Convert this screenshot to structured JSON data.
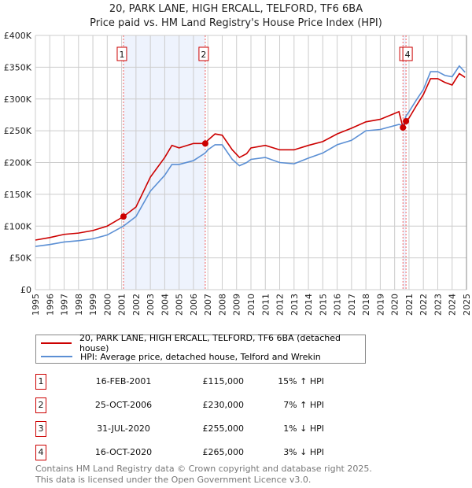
{
  "title_line1": "20, PARK LANE, HIGH ERCALL, TELFORD, TF6 6BA",
  "title_line2": "Price paid vs. HM Land Registry's House Price Index (HPI)",
  "chart_data": {
    "type": "line",
    "xlim": [
      1995,
      2025
    ],
    "ylim": [
      0,
      400000
    ],
    "y_ticks": [
      0,
      50000,
      100000,
      150000,
      200000,
      250000,
      300000,
      350000,
      400000
    ],
    "y_tick_labels": [
      "£0",
      "£50K",
      "£100K",
      "£150K",
      "£200K",
      "£250K",
      "£300K",
      "£350K",
      "£400K"
    ],
    "x_ticks": [
      1995,
      1996,
      1997,
      1998,
      1999,
      2000,
      2001,
      2002,
      2003,
      2004,
      2005,
      2006,
      2007,
      2008,
      2009,
      2010,
      2011,
      2012,
      2013,
      2014,
      2015,
      2016,
      2017,
      2018,
      2019,
      2020,
      2021,
      2022,
      2023,
      2024,
      2025
    ],
    "x_tick_labels": [
      "1995",
      "1996",
      "1997",
      "1998",
      "1999",
      "2000",
      "2001",
      "2002",
      "2003",
      "2004",
      "2005",
      "2006",
      "2007",
      "2008",
      "2009",
      "2010",
      "2011",
      "2012",
      "2013",
      "2014",
      "2015",
      "2016",
      "2017",
      "2018",
      "2019",
      "2020",
      "2021",
      "2022",
      "2023",
      "2024",
      "2025"
    ],
    "grid": true,
    "colors": {
      "property": "#cc0000",
      "hpi": "#5b8fd4",
      "shade": "#eef3fd"
    },
    "series": [
      {
        "name": "20, PARK LANE, HIGH ERCALL, TELFORD, TF6 6BA (detached house)",
        "x": [
          1995,
          1996,
          1997,
          1998,
          1999,
          2000,
          2001.13,
          2002,
          2003,
          2004,
          2004.5,
          2005,
          2006,
          2006.82,
          2007,
          2007.5,
          2008,
          2008.7,
          2009.2,
          2009.7,
          2010,
          2011,
          2012,
          2013,
          2014,
          2015,
          2016,
          2017,
          2018,
          2019,
          2020.3,
          2020.58,
          2020.79,
          2021,
          2021.5,
          2022,
          2022.5,
          2023,
          2023.5,
          2024,
          2024.5,
          2024.9
        ],
        "y": [
          78000,
          82000,
          87000,
          89000,
          93000,
          100000,
          115000,
          130000,
          177000,
          208000,
          227000,
          223000,
          230000,
          230000,
          235000,
          245000,
          243000,
          220000,
          208000,
          214000,
          223000,
          227000,
          220000,
          220000,
          227000,
          233000,
          245000,
          254000,
          264000,
          268000,
          280000,
          255000,
          265000,
          270000,
          289000,
          307000,
          332000,
          332000,
          326000,
          322000,
          340000,
          334000
        ]
      },
      {
        "name": "HPI: Average price, detached house, Telford and Wrekin",
        "x": [
          1995,
          1996,
          1997,
          1998,
          1999,
          2000,
          2001.13,
          2002,
          2003,
          2004,
          2004.5,
          2005,
          2006,
          2006.82,
          2007,
          2007.5,
          2008,
          2008.7,
          2009.2,
          2009.7,
          2010,
          2011,
          2012,
          2013,
          2014,
          2015,
          2016,
          2017,
          2018,
          2019,
          2020.3,
          2020.58,
          2020.79,
          2021,
          2021.5,
          2022,
          2022.5,
          2023,
          2023.5,
          2024,
          2024.5,
          2024.9
        ],
        "y": [
          68000,
          71000,
          75000,
          77000,
          80000,
          86000,
          100000,
          115000,
          155000,
          180000,
          197000,
          197000,
          203000,
          215000,
          220000,
          228000,
          228000,
          205000,
          195000,
          200000,
          205000,
          208000,
          200000,
          198000,
          207000,
          215000,
          228000,
          235000,
          250000,
          252000,
          260000,
          258000,
          273000,
          280000,
          298000,
          315000,
          343000,
          343000,
          337000,
          335000,
          352000,
          342000
        ]
      }
    ],
    "sales": [
      {
        "label": "1",
        "x": 2001.13,
        "y": 115000
      },
      {
        "label": "2",
        "x": 2006.82,
        "y": 230000
      },
      {
        "label": "3",
        "x": 2020.58,
        "y": 255000
      },
      {
        "label": "4",
        "x": 2020.79,
        "y": 265000
      }
    ]
  },
  "legend": {
    "property": "20, PARK LANE, HIGH ERCALL, TELFORD, TF6 6BA (detached house)",
    "hpi": "HPI: Average price, detached house, Telford and Wrekin"
  },
  "transactions": [
    {
      "num": "1",
      "date": "16-FEB-2001",
      "price": "£115,000",
      "hpi": "15% ↑ HPI"
    },
    {
      "num": "2",
      "date": "25-OCT-2006",
      "price": "£230,000",
      "hpi": "7% ↑ HPI"
    },
    {
      "num": "3",
      "date": "31-JUL-2020",
      "price": "£255,000",
      "hpi": "1% ↓ HPI"
    },
    {
      "num": "4",
      "date": "16-OCT-2020",
      "price": "£265,000",
      "hpi": "3% ↓ HPI"
    }
  ],
  "footer": {
    "line1": "Contains HM Land Registry data © Crown copyright and database right 2025.",
    "line2": "This data is licensed under the Open Government Licence v3.0."
  }
}
